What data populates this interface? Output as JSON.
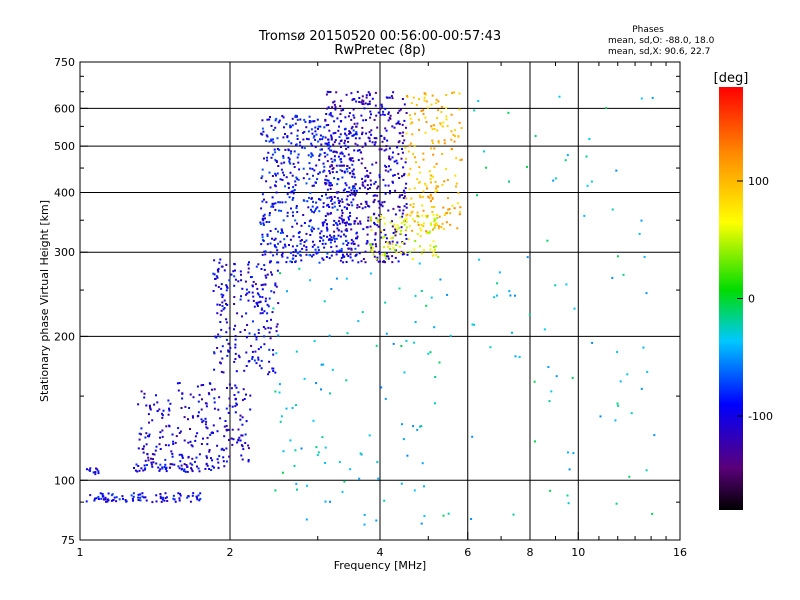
{
  "chart_data": {
    "type": "scatter",
    "title": "Tromsø 20150520 00:56:00-00:57:43",
    "subtitle": "RwPretec (8p)",
    "xlabel": "Frequency [MHz]",
    "ylabel": "Stationary phase Virtual Height [km]",
    "x_scale": "log",
    "y_scale": "log",
    "xlim": [
      1,
      16
    ],
    "ylim": [
      75,
      750
    ],
    "xticks": [
      "1",
      "2",
      "4",
      "6",
      "8",
      "10",
      "16"
    ],
    "xtick_values": [
      1,
      2,
      4,
      6,
      8,
      10,
      16
    ],
    "xgrid_values": [
      1,
      2,
      4,
      6,
      8,
      10
    ],
    "yticks": [
      "75",
      "100",
      "200",
      "300",
      "400",
      "500",
      "600",
      "750"
    ],
    "ytick_values": [
      75,
      100,
      200,
      300,
      400,
      500,
      600,
      750
    ],
    "ygrid_values": [
      100,
      200,
      300,
      400,
      500,
      600
    ],
    "grid": true,
    "stats": {
      "header": "Phases",
      "line1": "mean, sd,O: -88.0, 18.0",
      "line2": "mean, sd,X: 90.6, 22.7"
    },
    "colorbar": {
      "label": "[deg]",
      "range": [
        -180,
        180
      ],
      "ticks": [
        "100",
        "0",
        "-100"
      ],
      "tick_values": [
        100,
        0,
        -100
      ],
      "colormap": "rainbow (black-purple-blue-cyan-green-yellow-orange-red)"
    },
    "series": [
      {
        "name": "",
        "type": "band",
        "x": [
          1.03,
          1.75
        ],
        "y": [
          90,
          94
        ],
        "count": 90,
        "color_value": -95,
        "x_scale": "log"
      },
      {
        "name": "",
        "type": "band",
        "x": [
          1.03,
          1.09
        ],
        "y": [
          103,
          106
        ],
        "count": 12,
        "color_value": -95,
        "x_scale": "log"
      },
      {
        "name": "",
        "type": "band",
        "x": [
          1.28,
          1.95
        ],
        "y": [
          104,
          108
        ],
        "count": 60,
        "color_value": -95,
        "x_scale": "log"
      },
      {
        "name": "",
        "type": "band",
        "x": [
          1.3,
          2.2
        ],
        "y": [
          108,
          160
        ],
        "count": 240,
        "color_value": -105,
        "x_scale": "log"
      },
      {
        "name": "",
        "type": "band",
        "x": [
          1.85,
          2.5
        ],
        "y": [
          165,
          290
        ],
        "count": 220,
        "color_value": -100,
        "x_scale": "log"
      },
      {
        "name": "",
        "type": "band",
        "x": [
          2.3,
          3.6
        ],
        "y": [
          285,
          580
        ],
        "count": 560,
        "color_value": -90,
        "x_scale": "log"
      },
      {
        "name": "",
        "type": "band",
        "x": [
          3.1,
          4.55
        ],
        "y": [
          285,
          650
        ],
        "count": 520,
        "color_value": -110,
        "x_scale": "log"
      },
      {
        "name": "",
        "type": "band",
        "x": [
          3.8,
          5.25
        ],
        "y": [
          290,
          360
        ],
        "count": 110,
        "color_value": 60,
        "x_scale": "log"
      },
      {
        "name": "",
        "type": "band",
        "x": [
          4.5,
          5.85
        ],
        "y": [
          330,
          650
        ],
        "count": 190,
        "color_value": 100,
        "x_scale": "log"
      },
      {
        "name": "",
        "type": "band",
        "x": [
          2.4,
          5.6
        ],
        "y": [
          80,
          300
        ],
        "count": 110,
        "color_value": -30,
        "x_scale": "log"
      },
      {
        "name": "",
        "type": "band",
        "x": [
          6.0,
          14.5
        ],
        "y": [
          80,
          650
        ],
        "count": 85,
        "color_value": -30,
        "x_scale": "log"
      }
    ]
  }
}
